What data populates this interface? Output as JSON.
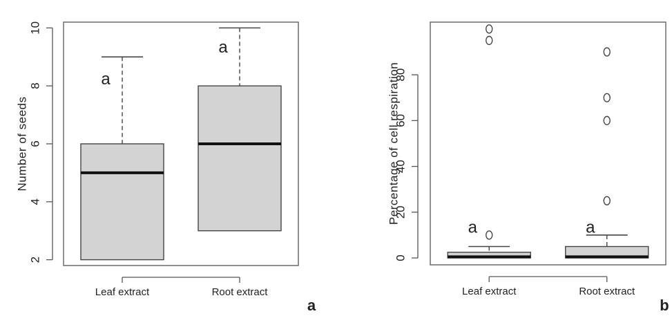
{
  "chart_data": [
    {
      "type": "box",
      "panel_label": "a",
      "ylabel": "Number of seeds",
      "ylim": [
        1.8,
        10.2
      ],
      "yticks": [
        2,
        4,
        6,
        8,
        10
      ],
      "categories": [
        "Leaf extract",
        "Root extract"
      ],
      "boxes": [
        {
          "category": "Leaf extract",
          "whisker_low": 2,
          "q1": 2,
          "median": 5,
          "q3": 6,
          "whisker_high": 9,
          "outliers": [],
          "significance": "a"
        },
        {
          "category": "Root extract",
          "whisker_low": 3,
          "q1": 3,
          "median": 6,
          "q3": 8,
          "whisker_high": 10,
          "outliers": [],
          "significance": "a"
        }
      ],
      "box_color": "#d3d3d3"
    },
    {
      "type": "box",
      "panel_label": "b",
      "ylabel": "Percentage of cell respiration",
      "ylim": [
        -3,
        103
      ],
      "yticks": [
        0,
        20,
        40,
        60,
        80
      ],
      "categories": [
        "Leaf extract",
        "Root extract"
      ],
      "boxes": [
        {
          "category": "Leaf extract",
          "whisker_low": 0,
          "q1": 0,
          "median": 0.5,
          "q3": 2.5,
          "whisker_high": 5,
          "outliers": [
            10,
            95,
            100
          ],
          "significance": "a"
        },
        {
          "category": "Root extract",
          "whisker_low": 0,
          "q1": 0,
          "median": 0.5,
          "q3": 5,
          "whisker_high": 10,
          "outliers": [
            25,
            60,
            70,
            90
          ],
          "significance": "a"
        }
      ],
      "box_color": "#d3d3d3"
    }
  ]
}
